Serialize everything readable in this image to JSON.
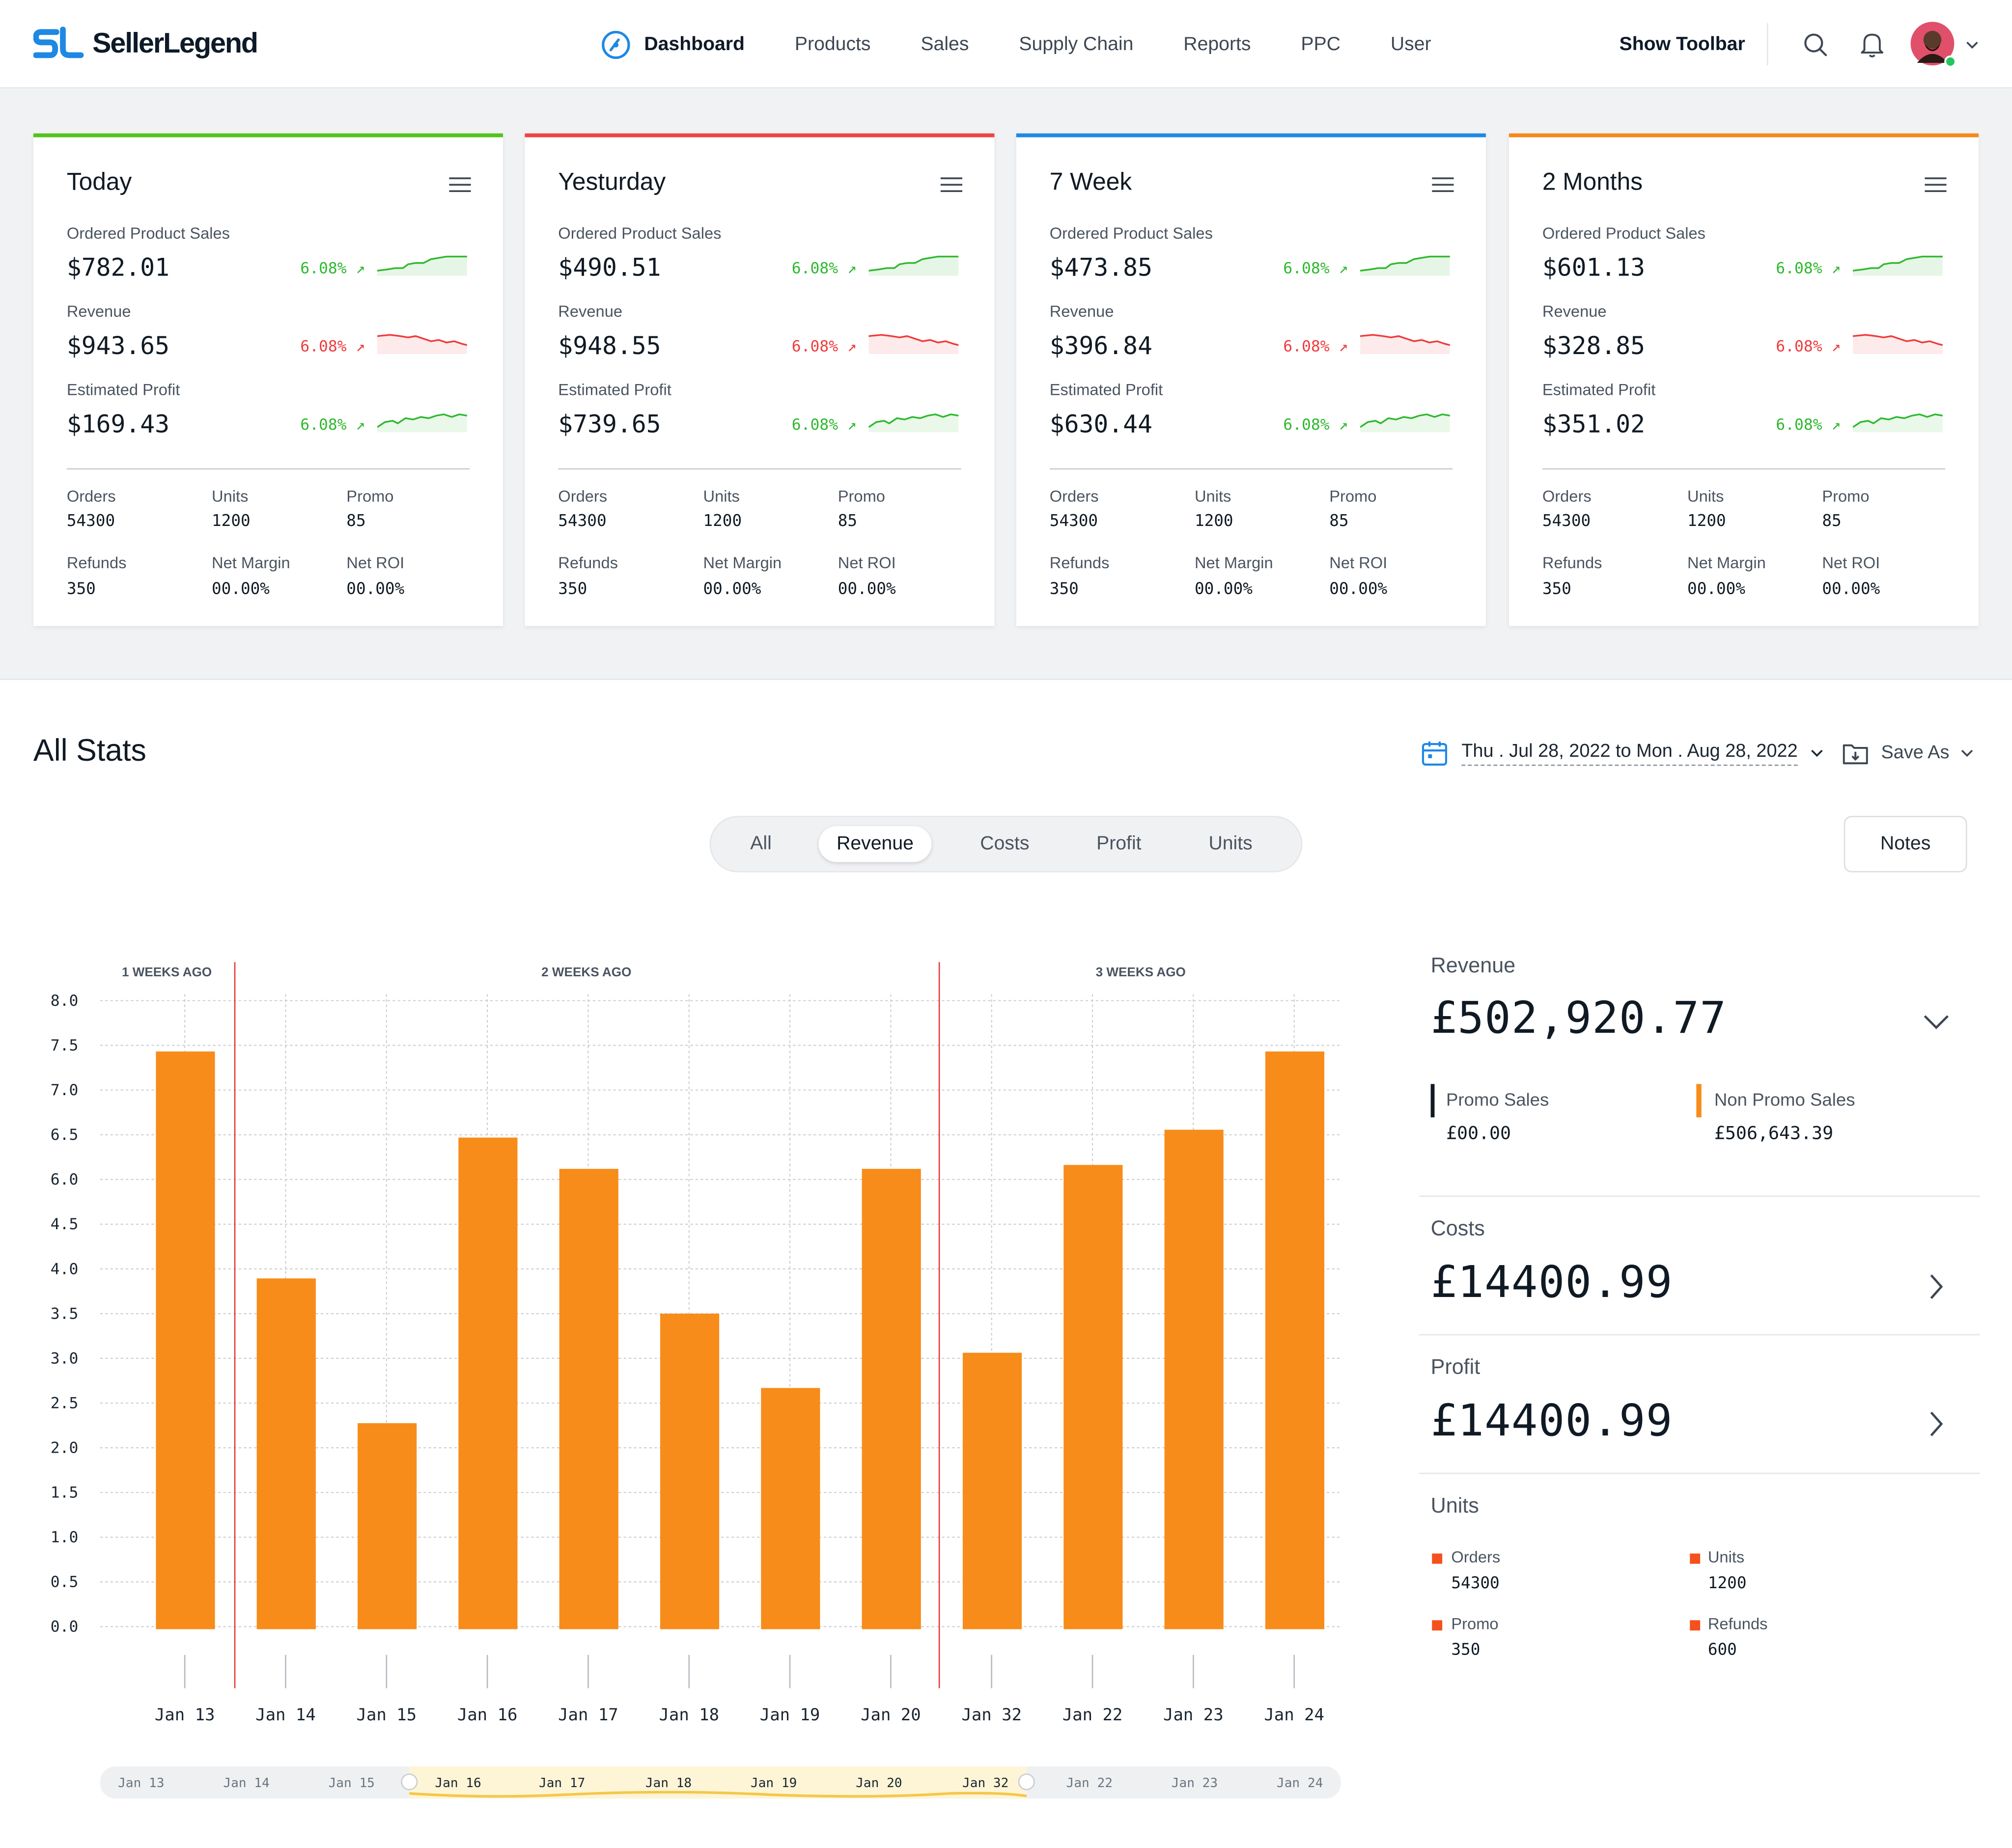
{
  "brand": {
    "name": "SellerLegend",
    "accent": "#1e88e5"
  },
  "nav": {
    "items": [
      "Dashboard",
      "Products",
      "Sales",
      "Supply Chain",
      "Reports",
      "PPC",
      "User"
    ],
    "active": "Dashboard"
  },
  "header": {
    "show_toolbar": "Show Toolbar"
  },
  "cards": [
    {
      "title": "Today",
      "color": "#52c41a",
      "ordered_label": "Ordered Product Sales",
      "ordered": "$782.01",
      "revenue_label": "Revenue",
      "revenue": "$943.65",
      "profit_label": "Estimated Profit",
      "profit": "$169.43",
      "pct1": "6.08%",
      "pct2": "6.08%",
      "pct3": "6.08%",
      "orders_label": "Orders",
      "orders": "54300",
      "units_label": "Units",
      "units": "1200",
      "promo_label": "Promo",
      "promo": "85",
      "refunds_label": "Refunds",
      "refunds": "350",
      "net_margin_label": "Net Margin",
      "net_margin": "00.00%",
      "net_roi_label": "Net ROI",
      "net_roi": "00.00%"
    },
    {
      "title": "Yesturday",
      "color": "#ef4444",
      "ordered_label": "Ordered Product Sales",
      "ordered": "$490.51",
      "revenue_label": "Revenue",
      "revenue": "$948.55",
      "profit_label": "Estimated Profit",
      "profit": "$739.65",
      "pct1": "6.08%",
      "pct2": "6.08%",
      "pct3": "6.08%",
      "orders_label": "Orders",
      "orders": "54300",
      "units_label": "Units",
      "units": "1200",
      "promo_label": "Promo",
      "promo": "85",
      "refunds_label": "Refunds",
      "refunds": "350",
      "net_margin_label": "Net Margin",
      "net_margin": "00.00%",
      "net_roi_label": "Net ROI",
      "net_roi": "00.00%"
    },
    {
      "title": "7 Week",
      "color": "#1e88e5",
      "ordered_label": "Ordered Product Sales",
      "ordered": "$473.85",
      "revenue_label": "Revenue",
      "revenue": "$396.84",
      "profit_label": "Estimated Profit",
      "profit": "$630.44",
      "pct1": "6.08%",
      "pct2": "6.08%",
      "pct3": "6.08%",
      "orders_label": "Orders",
      "orders": "54300",
      "units_label": "Units",
      "units": "1200",
      "promo_label": "Promo",
      "promo": "85",
      "refunds_label": "Refunds",
      "refunds": "350",
      "net_margin_label": "Net Margin",
      "net_margin": "00.00%",
      "net_roi_label": "Net ROI",
      "net_roi": "00.00%"
    },
    {
      "title": "2 Months",
      "color": "#f5891a",
      "ordered_label": "Ordered Product Sales",
      "ordered": "$601.13",
      "revenue_label": "Revenue",
      "revenue": "$328.85",
      "profit_label": "Estimated Profit",
      "profit": "$351.02",
      "pct1": "6.08%",
      "pct2": "6.08%",
      "pct3": "6.08%",
      "orders_label": "Orders",
      "orders": "54300",
      "units_label": "Units",
      "units": "1200",
      "promo_label": "Promo",
      "promo": "85",
      "refunds_label": "Refunds",
      "refunds": "350",
      "net_margin_label": "Net Margin",
      "net_margin": "00.00%",
      "net_roi_label": "Net ROI",
      "net_roi": "00.00%"
    }
  ],
  "stats": {
    "title": "All Stats",
    "date_range": "Thu . Jul 28, 2022 to Mon . Aug 28, 2022",
    "save_as": "Save As",
    "tabs": [
      "All",
      "Revenue",
      "Costs",
      "Profit",
      "Units"
    ],
    "active_tab": "Revenue",
    "notes": "Notes"
  },
  "chart_data": {
    "type": "bar",
    "categories": [
      "Jan 13",
      "Jan 14",
      "Jan 15",
      "Jan 16",
      "Jan 17",
      "Jan 18",
      "Jan 19",
      "Jan 20",
      "Jan 32",
      "Jan 22",
      "Jan 23",
      "Jan 24"
    ],
    "values": [
      7.35,
      4.45,
      2.6,
      6.25,
      5.85,
      4.0,
      3.05,
      5.85,
      3.5,
      5.9,
      6.35,
      7.35
    ],
    "ylim": [
      0,
      8
    ],
    "yticks": [
      "0.0",
      "0.5",
      "1.0",
      "1.5",
      "2.0",
      "2.5",
      "3.0",
      "3.5",
      "4.0",
      "4.5",
      "6.0",
      "6.5",
      "7.0",
      "7.5",
      "8.0"
    ],
    "bar_color": "#f78c1a",
    "week_labels": [
      "1 WEEKS AGO",
      "2 WEEKS AGO",
      "3 WEEKS AGO"
    ],
    "navigator_labels": [
      "Jan 13",
      "Jan 14",
      "Jan 15",
      "Jan 16",
      "Jan 17",
      "Jan 18",
      "Jan 19",
      "Jan 20",
      "Jan 32",
      "Jan 22",
      "Jan 23",
      "Jan 24"
    ]
  },
  "summary": {
    "revenue_label": "Revenue",
    "revenue": "£502,920.77",
    "promo_label": "Promo Sales",
    "promo": "£00.00",
    "non_promo_label": "Non Promo Sales",
    "non_promo": "£506,643.39",
    "costs_label": "Costs",
    "costs": "£14400.99",
    "profit_label": "Profit",
    "profit": "£14400.99",
    "units_label": "Units",
    "orders_label": "Orders",
    "orders": "54300",
    "units_item_label": "Units",
    "units": "1200",
    "promo_item_label": "Promo",
    "promo_count": "350",
    "refunds_label": "Refunds",
    "refunds": "600"
  }
}
